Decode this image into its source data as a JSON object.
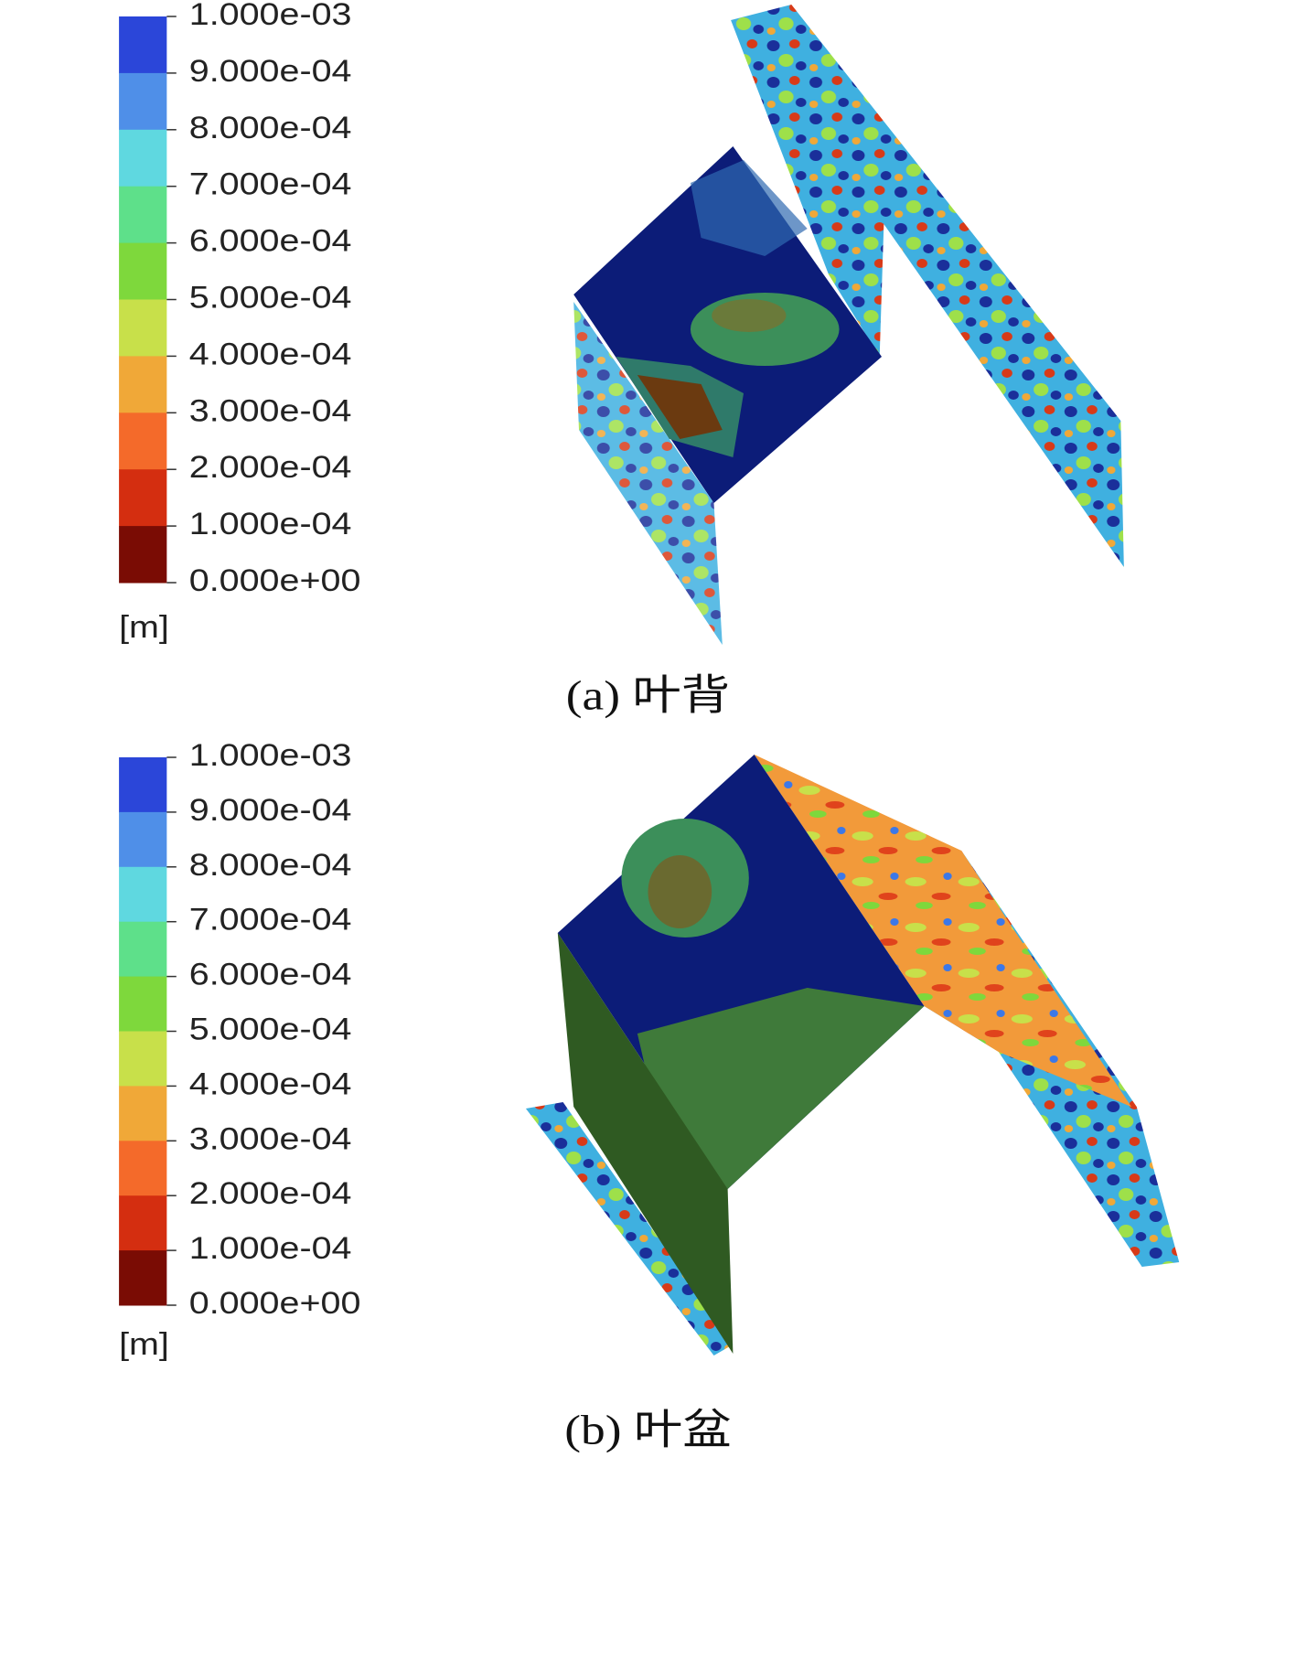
{
  "panels": [
    {
      "legend": {
        "labels": [
          "1.000e-03",
          "9.000e-04",
          "8.000e-04",
          "7.000e-04",
          "6.000e-04",
          "5.000e-04",
          "4.000e-04",
          "3.000e-04",
          "2.000e-04",
          "1.000e-04",
          "0.000e+00"
        ],
        "unit": "[m]",
        "colors": [
          "#2b46d9",
          "#4f8fe8",
          "#5fd8e0",
          "#5ee08a",
          "#7ed83c",
          "#c8e04a",
          "#f0a838",
          "#f46a2a",
          "#d42e10",
          "#7a0c04"
        ]
      },
      "caption": "(a) 叶背"
    },
    {
      "legend": {
        "labels": [
          "1.000e-03",
          "9.000e-04",
          "8.000e-04",
          "7.000e-04",
          "6.000e-04",
          "5.000e-04",
          "4.000e-04",
          "3.000e-04",
          "2.000e-04",
          "1.000e-04",
          "0.000e+00"
        ],
        "unit": "[m]",
        "colors": [
          "#2b46d9",
          "#4f8fe8",
          "#5fd8e0",
          "#5ee08a",
          "#7ed83c",
          "#c8e04a",
          "#f0a838",
          "#f46a2a",
          "#d42e10",
          "#7a0c04"
        ]
      },
      "caption": "(b) 叶盆"
    }
  ]
}
